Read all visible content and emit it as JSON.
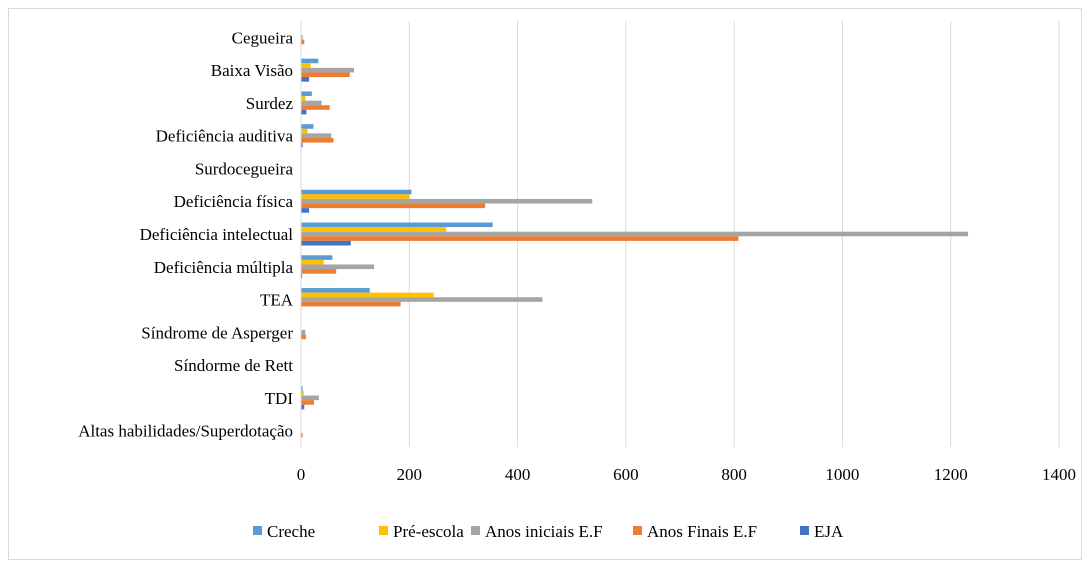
{
  "chart_data": {
    "type": "bar",
    "orientation": "horizontal",
    "categories": [
      "Cegueira",
      "Baixa Visão",
      "Surdez",
      "Deficiência auditiva",
      "Surdocegueira",
      "Deficiência física",
      "Deficiência intelectual",
      "Deficiência múltipla",
      "TEA",
      "Síndrome de Asperger",
      "Síndorme de Rett",
      "TDI",
      "Altas habilidades/Superdotação"
    ],
    "series": [
      {
        "name": "Creche",
        "color": "#5b9bd5",
        "values": [
          0,
          32,
          20,
          23,
          0,
          204,
          354,
          58,
          127,
          0,
          0,
          3,
          0
        ]
      },
      {
        "name": "Pré-escola",
        "color": "#ffc000",
        "values": [
          0,
          18,
          8,
          12,
          0,
          200,
          268,
          42,
          245,
          0,
          0,
          5,
          0
        ]
      },
      {
        "name": "Anos iniciais E.F",
        "color": "#a5a5a5",
        "values": [
          3,
          98,
          38,
          56,
          0,
          538,
          1232,
          135,
          446,
          8,
          0,
          33,
          0
        ]
      },
      {
        "name": "Anos Finais E.F",
        "color": "#ed7d31",
        "values": [
          6,
          90,
          53,
          60,
          0,
          340,
          808,
          65,
          184,
          9,
          0,
          24,
          3
        ]
      },
      {
        "name": "EJA",
        "color": "#4472c4",
        "values": [
          0,
          15,
          10,
          3,
          0,
          15,
          92,
          2,
          0,
          0,
          0,
          6,
          0
        ]
      }
    ],
    "xlim": [
      0,
      1400
    ],
    "xticks": [
      "0",
      "200",
      "400",
      "600",
      "800",
      "1000",
      "1200",
      "1400"
    ],
    "grid": true,
    "legend_position": "bottom",
    "title": "",
    "xlabel": "",
    "ylabel": ""
  }
}
